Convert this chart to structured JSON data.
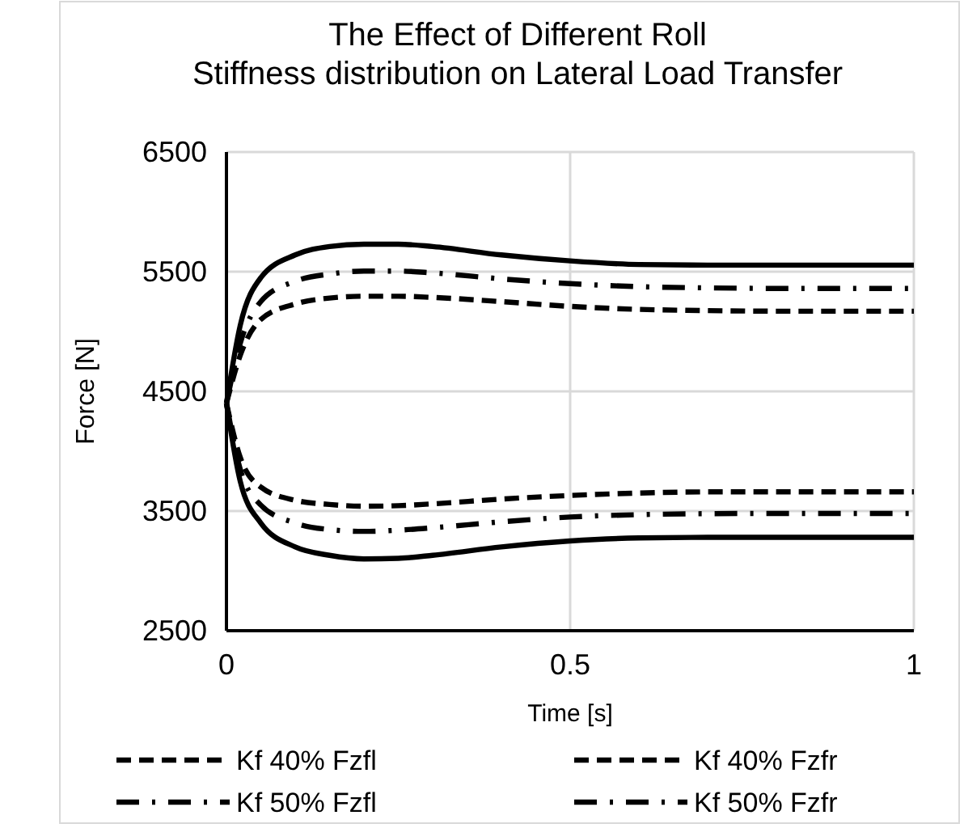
{
  "chart_data": {
    "type": "line",
    "title": "The Effect of Different Roll Stiffness distribution on Lateral Load Transfer",
    "xlabel": "Time [s]",
    "ylabel": "Force [N]",
    "x": [
      0,
      0.02,
      0.05,
      0.1,
      0.15,
      0.2,
      0.25,
      0.3,
      0.4,
      0.5,
      0.6,
      0.7,
      0.8,
      1
    ],
    "series": [
      {
        "name": "Kf 40% Fzfl",
        "color": "#000000",
        "line_style": "dashed",
        "values": [
          4400,
          4800,
          5100,
          5230,
          5280,
          5295,
          5295,
          5285,
          5250,
          5210,
          5185,
          5175,
          5170,
          5170
        ]
      },
      {
        "name": "Kf 40% Fzfr",
        "color": "#000000",
        "line_style": "dashed",
        "values": [
          4400,
          3950,
          3700,
          3590,
          3555,
          3540,
          3545,
          3560,
          3600,
          3630,
          3650,
          3660,
          3660,
          3660
        ]
      },
      {
        "name": "Kf 50% Fzfl",
        "color": "#000000",
        "line_style": "dashdot",
        "values": [
          4400,
          4900,
          5250,
          5420,
          5480,
          5505,
          5505,
          5490,
          5440,
          5400,
          5375,
          5365,
          5360,
          5360
        ]
      },
      {
        "name": "Kf 50% Fzfr",
        "color": "#000000",
        "line_style": "dashdot",
        "values": [
          4400,
          3850,
          3550,
          3400,
          3345,
          3330,
          3340,
          3360,
          3410,
          3450,
          3470,
          3478,
          3480,
          3480
        ]
      },
      {
        "color": "#000000",
        "line_style": "solid",
        "values": [
          4400,
          5050,
          5450,
          5640,
          5710,
          5730,
          5730,
          5710,
          5640,
          5590,
          5560,
          5555,
          5555,
          5555
        ]
      },
      {
        "color": "#000000",
        "line_style": "solid",
        "values": [
          4400,
          3750,
          3400,
          3200,
          3130,
          3100,
          3105,
          3130,
          3200,
          3250,
          3275,
          3280,
          3280,
          3280
        ]
      }
    ],
    "xlim": [
      0,
      1
    ],
    "xticks": [
      0,
      0.5,
      1
    ],
    "ylim": [
      2500,
      6500
    ],
    "yticks": [
      2500,
      3500,
      4500,
      5500,
      6500
    ],
    "grid": true,
    "legend": "bottom"
  }
}
